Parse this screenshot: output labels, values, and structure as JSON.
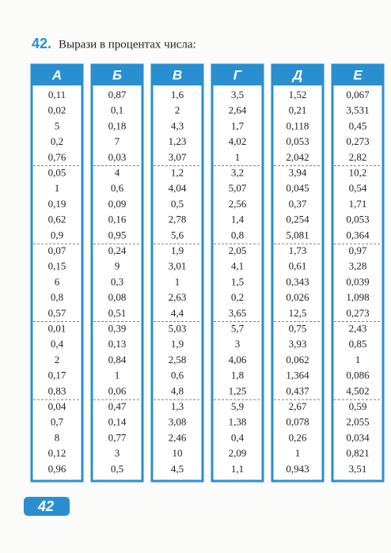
{
  "exercise": {
    "number": "42.",
    "text": "Вырази в процентах числа:"
  },
  "columns": [
    {
      "header": "А",
      "values": [
        "0,11",
        "0,02",
        "5",
        "0,2",
        "0,76",
        "0,05",
        "1",
        "0,19",
        "0,62",
        "0,9",
        "0,07",
        "0,15",
        "6",
        "0,8",
        "0,57",
        "0,01",
        "0,4",
        "2",
        "0,17",
        "0,83",
        "0,04",
        "0,7",
        "8",
        "0,12",
        "0,96"
      ]
    },
    {
      "header": "Б",
      "values": [
        "0,87",
        "0,1",
        "0,18",
        "7",
        "0,03",
        "4",
        "0,6",
        "0,09",
        "0,16",
        "0,95",
        "0,24",
        "9",
        "0,3",
        "0,08",
        "0,51",
        "0,39",
        "0,13",
        "0,84",
        "1",
        "0,06",
        "0,47",
        "0,14",
        "0,77",
        "3",
        "0,5"
      ]
    },
    {
      "header": "В",
      "values": [
        "1,6",
        "2",
        "4,3",
        "1,23",
        "3,07",
        "1,2",
        "4,04",
        "0,5",
        "2,78",
        "5,6",
        "1,9",
        "3,01",
        "1",
        "2,63",
        "4,4",
        "5,03",
        "1,9",
        "2,58",
        "0,6",
        "4,8",
        "1,3",
        "3,08",
        "2,46",
        "10",
        "4,5"
      ]
    },
    {
      "header": "Г",
      "values": [
        "3,5",
        "2,64",
        "1,7",
        "4,02",
        "1",
        "3,2",
        "5,07",
        "2,56",
        "1,4",
        "0,8",
        "2,05",
        "4,1",
        "1,5",
        "0,2",
        "3,65",
        "5,7",
        "3",
        "4,06",
        "1,8",
        "1,25",
        "5,9",
        "1,38",
        "0,4",
        "2,09",
        "1,1"
      ]
    },
    {
      "header": "Д",
      "values": [
        "1,52",
        "0,21",
        "0,118",
        "0,053",
        "2,042",
        "3,94",
        "0,045",
        "0,37",
        "0,254",
        "5,081",
        "1,73",
        "0,61",
        "0,343",
        "0,026",
        "12,5",
        "0,75",
        "3,93",
        "0,062",
        "1,364",
        "0,437",
        "2,67",
        "0,078",
        "0,26",
        "1",
        "0,943"
      ]
    },
    {
      "header": "Е",
      "values": [
        "0,067",
        "3,531",
        "0,45",
        "0,273",
        "2,82",
        "10,2",
        "0,54",
        "1,71",
        "0,053",
        "0,364",
        "0,97",
        "3,28",
        "0,039",
        "1,098",
        "0,273",
        "2,43",
        "0,85",
        "1",
        "0,086",
        "4,502",
        "0,59",
        "2,055",
        "0,034",
        "0,821",
        "3,51"
      ]
    }
  ],
  "page_number": "42"
}
